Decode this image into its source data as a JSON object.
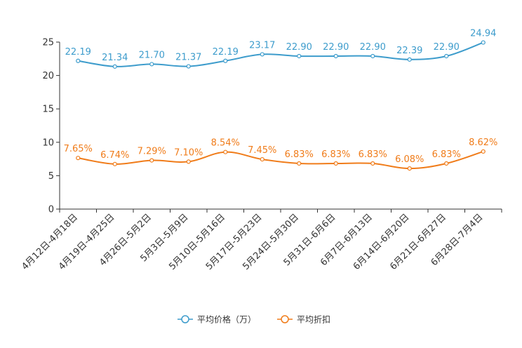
{
  "chart_data": {
    "type": "line",
    "title": "",
    "xlabel": "",
    "ylabel": "",
    "ylim": [
      0,
      25
    ],
    "yticks": [
      0,
      5,
      10,
      15,
      20,
      25
    ],
    "grid": false,
    "legend_position": "bottom-center",
    "categories": [
      "4月12日-4月18日",
      "4月19日-4月25日",
      "4月26日-5月2日",
      "5月3日-5月9日",
      "5月10日-5月16日",
      "5月17日-5月23日",
      "5月24日-5月30日",
      "5月31日-6月6日",
      "6月7日-6月13日",
      "6月14日-6月20日",
      "6月21日-6月27日",
      "6月28日-7月4日"
    ],
    "series": [
      {
        "name": "平均价格（万）",
        "color": "#3d9ccc",
        "values": [
          22.19,
          21.34,
          21.7,
          21.37,
          22.19,
          23.17,
          22.9,
          22.9,
          22.9,
          22.39,
          22.9,
          24.94
        ],
        "labels": [
          "22.19",
          "21.34",
          "21.70",
          "21.37",
          "22.19",
          "23.17",
          "22.90",
          "22.90",
          "22.90",
          "22.39",
          "22.90",
          "24.94"
        ]
      },
      {
        "name": "平均折扣",
        "color": "#f07c1a",
        "values": [
          7.65,
          6.74,
          7.29,
          7.1,
          8.54,
          7.45,
          6.83,
          6.83,
          6.83,
          6.08,
          6.83,
          8.62
        ],
        "labels": [
          "7.65%",
          "6.74%",
          "7.29%",
          "7.10%",
          "8.54%",
          "7.45%",
          "6.83%",
          "6.83%",
          "6.83%",
          "6.08%",
          "6.83%",
          "8.62%"
        ]
      }
    ]
  }
}
